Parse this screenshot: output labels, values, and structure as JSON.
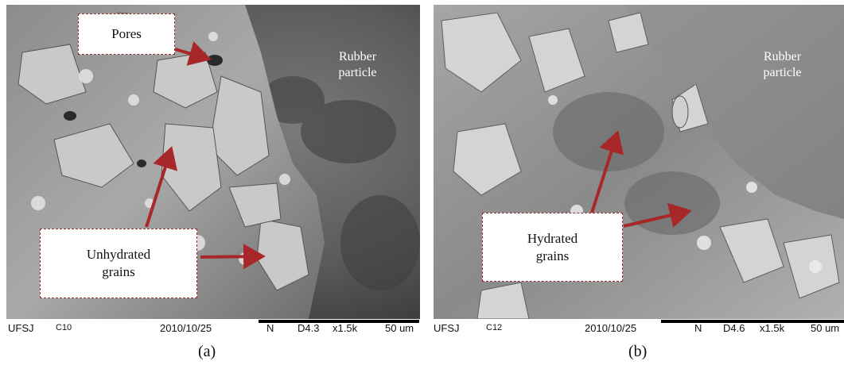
{
  "panels": [
    {
      "caption": "(a)",
      "rubber_label": "Rubber particle",
      "callouts": {
        "pores": "Pores",
        "grains": "Unhydrated grains"
      },
      "footer": {
        "lab": "UFSJ",
        "sample": "C10",
        "date": "2010/10/25",
        "mode": "N",
        "distance": "D4.3",
        "magnification": "x1.5k",
        "scale": "50 um"
      }
    },
    {
      "caption": "(b)",
      "rubber_label": "Rubber particle",
      "callouts": {
        "grains": "Hydrated grains"
      },
      "footer": {
        "lab": "UFSJ",
        "sample": "C12",
        "date": "2010/10/25",
        "mode": "N",
        "distance": "D4.6",
        "magnification": "x1.5k",
        "scale": "50 um"
      }
    }
  ],
  "colors": {
    "arrow": "#a8282a",
    "box_border": "#8b2d2d"
  }
}
